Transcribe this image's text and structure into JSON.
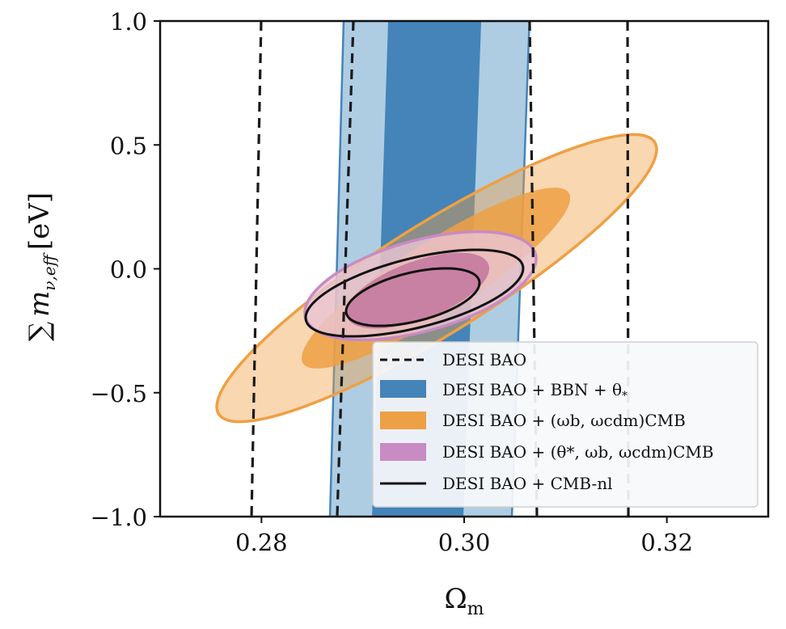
{
  "chart_data": {
    "type": "contour",
    "title": "",
    "xlabel": "Ωm",
    "xlabel_main": "Ω",
    "xlabel_sub": "m",
    "ylabel": "∑ m_ν,eff [eV]",
    "ylabel_parts": {
      "sum": "∑",
      "symbol": "m",
      "sub": "ν,eff",
      "unit": "[eV]"
    },
    "xlim": [
      0.27,
      0.33
    ],
    "ylim": [
      -1.0,
      1.0
    ],
    "xticks": [
      0.28,
      0.3,
      0.32
    ],
    "xtick_labels": [
      "0.28",
      "0.30",
      "0.32"
    ],
    "yticks": [
      1.0,
      0.5,
      0.0,
      -0.5,
      -1.0
    ],
    "ytick_labels": [
      "1.0",
      "0.5",
      "0.0",
      "−0.5",
      "−1.0"
    ],
    "grid": false,
    "legend_position": "lower-right",
    "colors": {
      "blue": "#4484b8",
      "blue_light": "#aecde3",
      "orange": "#eea044",
      "orange_light": "#f8d8ac",
      "pink": "#c88bc3",
      "pink_dark": "#c47aa0",
      "pink_light": "#e8c4d6",
      "black": "#111111"
    },
    "series": [
      {
        "name": "DESI BAO",
        "style": "dashed-lines",
        "lines": [
          {
            "x_at_ymax": 0.27997,
            "x_at_ymin": 0.27902
          },
          {
            "x_at_ymax": 0.28907,
            "x_at_ymin": 0.28747
          },
          {
            "x_at_ymax": 0.30646,
            "x_at_ymin": 0.30718
          },
          {
            "x_at_ymax": 0.31612,
            "x_at_ymin": 0.3162
          }
        ]
      },
      {
        "name": "DESI BAO + BBN + θ*",
        "style": "bands",
        "bands": [
          {
            "level": "2sigma",
            "left": [
              0.28811,
              0.28676
            ],
            "right": [
              0.30644,
              0.30471
            ]
          },
          {
            "level": "1sigma",
            "left": [
              0.2925,
              0.29091
            ],
            "right": [
              0.30168,
              0.29992
            ]
          }
        ]
      },
      {
        "name": "DESI BAO + (ωb, ωcdm)CMB",
        "style": "ellipses",
        "contours": [
          {
            "level": "2sigma",
            "center": [
              0.29729,
              -0.0375
            ],
            "a": [
              0.0217,
              0.519
            ],
            "b": [
              0,
              0.258
            ]
          },
          {
            "level": "1sigma",
            "center": [
              0.29721,
              -0.0375
            ],
            "a": [
              0.01325,
              0.323
            ],
            "b": [
              0,
              0.17
            ]
          }
        ]
      },
      {
        "name": "DESI BAO + (θ*, ωb, ωcdm)CMB",
        "style": "ellipses",
        "contours": [
          {
            "level": "2sigma",
            "center": [
              0.29569,
              -0.0685
            ],
            "a": [
              0.01141,
              0.1093
            ],
            "b": [
              0,
              0.189
            ]
          },
          {
            "level": "1sigma",
            "center": [
              0.29541,
              -0.088
            ],
            "a": [
              0.00706,
              0.0897
            ],
            "b": [
              0,
              0.124
            ]
          }
        ]
      },
      {
        "name": "DESI BAO + CMB-nl",
        "style": "outline-ellipses",
        "contours": [
          {
            "level": "2sigma",
            "center": [
              0.29509,
              -0.0979
            ],
            "a": [
              0.01073,
              0.0995
            ],
            "b": [
              0,
              0.1436
            ]
          },
          {
            "level": "1sigma",
            "center": [
              0.29493,
              -0.1142
            ],
            "a": [
              0.00658,
              0.0571
            ],
            "b": [
              0,
              0.101
            ]
          }
        ]
      }
    ],
    "legend": [
      {
        "key": "dashed",
        "label": "DESI BAO"
      },
      {
        "key": "blue",
        "label": "DESI BAO + BBN + θ",
        "sub": "*"
      },
      {
        "key": "orange",
        "label": "DESI BAO + (ω",
        "parts": [
          [
            "ω",
            "b"
          ],
          [
            "ω",
            "cdm"
          ]
        ],
        "suffix_sub": "CMB",
        "text": "DESI BAO + (ωb, ωcdm)CMB"
      },
      {
        "key": "pink",
        "label": "DESI BAO + (θ*, ωb, ωcdm)CMB",
        "text": "DESI BAO + (θ*, ωb, ωcdm)CMB"
      },
      {
        "key": "solid",
        "label": "DESI BAO + CMB-nl"
      }
    ]
  }
}
